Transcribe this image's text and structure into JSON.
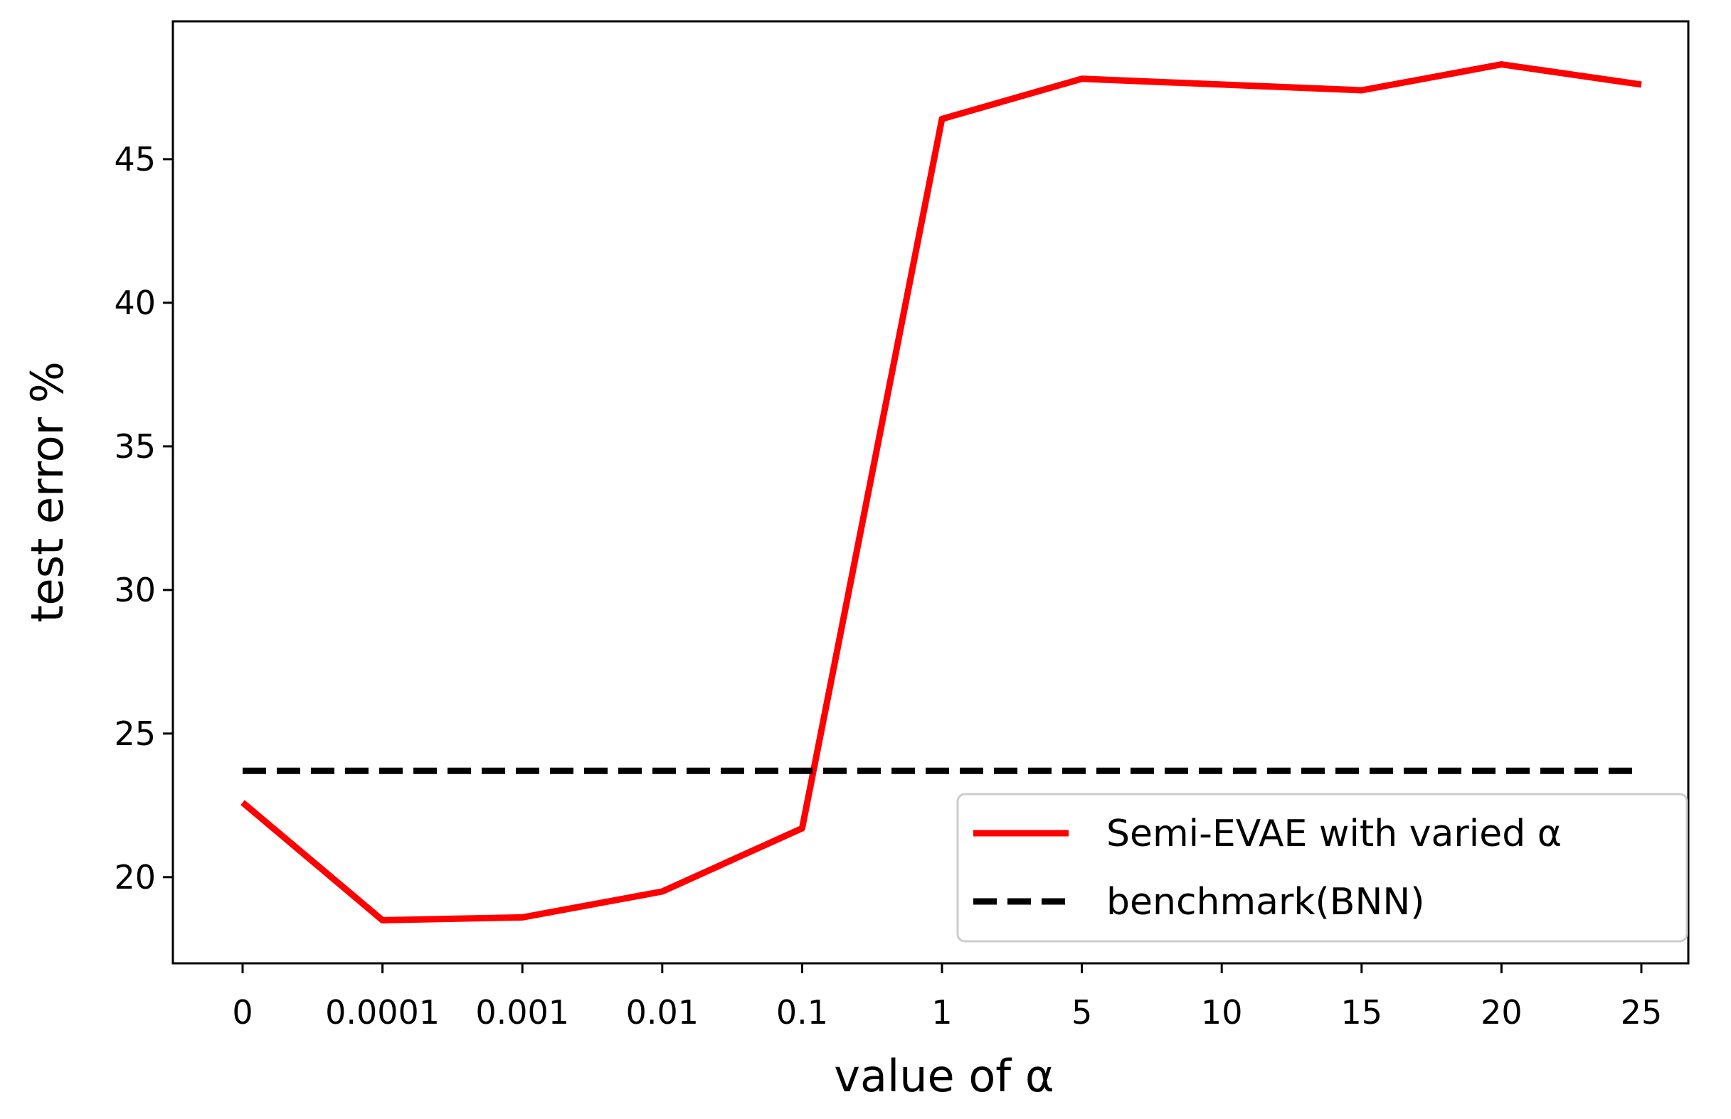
{
  "chart_data": {
    "type": "line",
    "title": "",
    "xlabel": "value of α",
    "ylabel": "test error %",
    "categories": [
      "0",
      "0.0001",
      "0.001",
      "0.01",
      "0.1",
      "1",
      "5",
      "10",
      "15",
      "20",
      "25"
    ],
    "yticks": [
      20,
      25,
      30,
      35,
      40,
      45
    ],
    "ylim": [
      17,
      49.8
    ],
    "grid": false,
    "legend_position": "lower-right",
    "series": [
      {
        "name": "Semi-EVAE with varied α",
        "style": "solid",
        "color": "#ff0000",
        "x": [
          0,
          1,
          2,
          3,
          4,
          5,
          6,
          8,
          9,
          10
        ],
        "values": [
          22.6,
          18.5,
          18.6,
          19.5,
          21.7,
          46.4,
          47.8,
          47.4,
          48.3,
          47.6
        ]
      },
      {
        "name": "benchmark(BNN)",
        "style": "dashed",
        "color": "#000000",
        "x": [
          0,
          10
        ],
        "values": [
          23.7,
          23.7
        ]
      }
    ]
  }
}
